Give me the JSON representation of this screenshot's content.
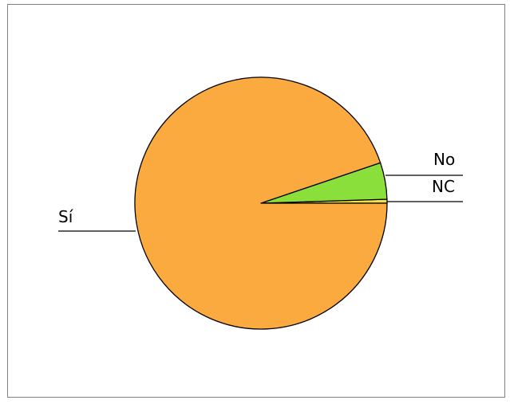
{
  "chart_data": {
    "type": "pie",
    "title": "",
    "slices": [
      {
        "label": "Sí",
        "value": 94.8,
        "color": "#FBAA3F"
      },
      {
        "label": "No",
        "value": 4.7,
        "color": "#8ADF3A"
      },
      {
        "label": "NC",
        "value": 0.5,
        "color": "#F2E04A"
      }
    ],
    "legend": "none",
    "labels_position": "outside-with-leader-lines"
  }
}
